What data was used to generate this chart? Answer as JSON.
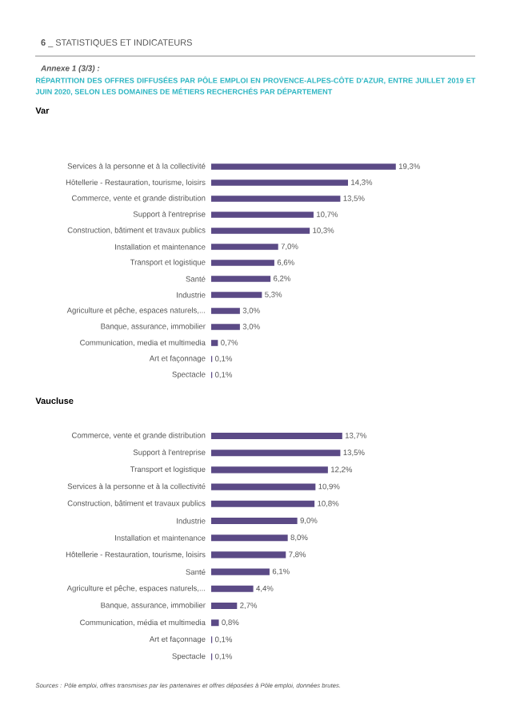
{
  "chart_data": [
    {
      "type": "bar",
      "orientation": "horizontal",
      "color": "#5b4a86",
      "title": "Var",
      "annotations": [
        "**6** _ STATISTIQUES ET INDICATEURS",
        "*Annexe 1 (3/3) :*",
        "RÉPARTITION DES OFFRES DIFFUSÉES PAR PÔLE EMPLOI EN PROVENCE-ALPES-CÔTE D'AZUR, ENTRE JUILLET 2019 ET JUIN 2020, SELON LES DOMAINES DE MÉTIERS RECHERCHÉS PAR DÉPARTEMENT"
      ],
      "categories": [
        "Services à la personne et à la collectivité",
        "Hôtellerie - Restauration, tourisme, loisirs",
        "Commerce, vente et grande distribution",
        "Support à l'entreprise",
        "Construction, bâtiment et travaux publics",
        "Installation et maintenance",
        "Transport et logistique",
        "Santé",
        "Industrie",
        "Agriculture et pêche, espaces naturels,...",
        "Banque, assurance, immobilier",
        "Communication, media et multimedia",
        "Art et façonnage",
        "Spectacle"
      ],
      "values": [
        19.3,
        14.3,
        13.5,
        10.7,
        10.3,
        7.0,
        6.6,
        6.2,
        5.3,
        3.0,
        3.0,
        0.7,
        0.1,
        0.1
      ],
      "value_labels": [
        "19,3%",
        "14,3%",
        "13,5%",
        "10,7%",
        "10,3%",
        "7,0%",
        "6,6%",
        "6,2%",
        "5,3%",
        "3,0%",
        "3,0%",
        "0,7%",
        "0,1%",
        "0,1%"
      ]
    },
    {
      "type": "bar",
      "orientation": "horizontal",
      "color": "#5b4a86",
      "title": "Vaucluse",
      "annotations": [
        "*Sources : Pôle emploi, offres transmises par les partenaires et offres déposées à Pôle emploi, données brutes.*"
      ],
      "categories": [
        "Commerce, vente et grande distribution",
        "Support à l'entreprise",
        "Transport et logistique",
        "Services à la personne et à la collectivité",
        "Construction, bâtiment et travaux publics",
        "Industrie",
        "Installation et maintenance",
        "Hôtellerie - Restauration, tourisme, loisirs",
        "Santé",
        "Agriculture et pêche, espaces naturels,...",
        "Banque, assurance, immobilier",
        "Communication, média et multimedia",
        "Art et façonnage",
        "Spectacle"
      ],
      "values": [
        13.7,
        13.5,
        12.2,
        10.9,
        10.8,
        9.0,
        8.0,
        7.8,
        6.1,
        4.4,
        2.7,
        0.8,
        0.1,
        0.1
      ],
      "value_labels": [
        "13,7%",
        "13,5%",
        "12,2%",
        "10,9%",
        "10,8%",
        "9,0%",
        "8,0%",
        "7,8%",
        "6,1%",
        "4,4%",
        "2,7%",
        "0,8%",
        "0,1%",
        "0,1%"
      ]
    }
  ]
}
